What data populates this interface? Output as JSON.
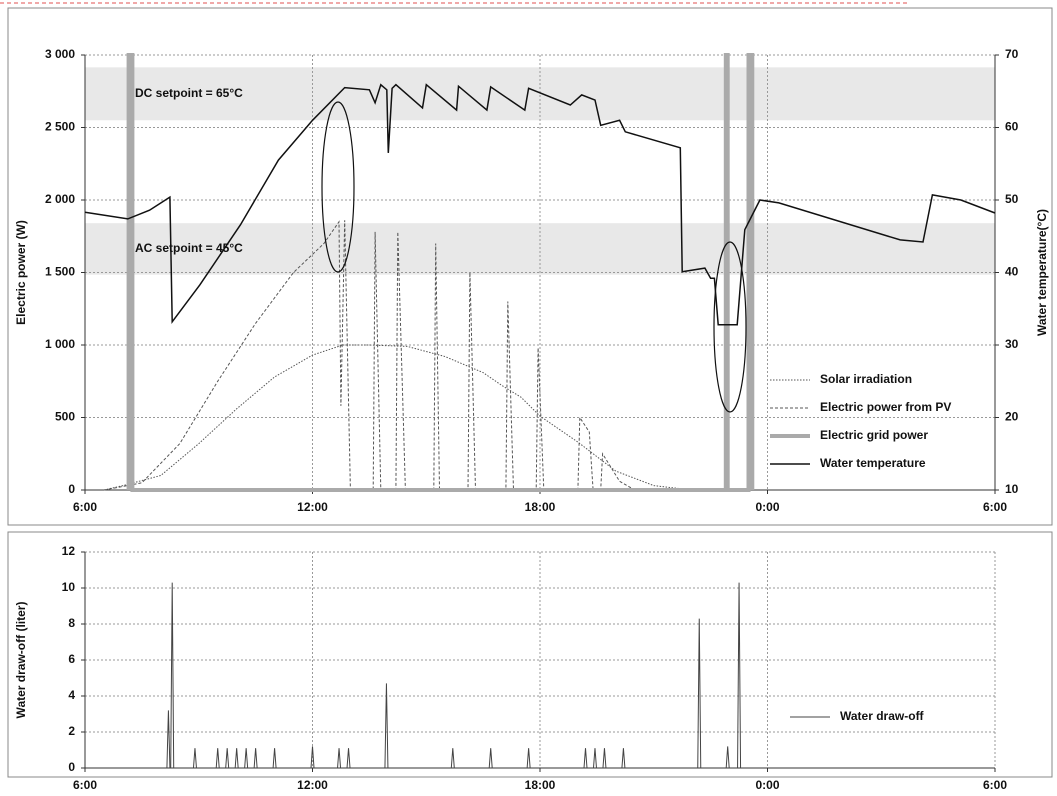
{
  "chart_data": [
    {
      "type": "line",
      "ylabel": "Electric power (W)",
      "y2label": "Water temperature(°C)",
      "xlim": [
        6,
        30
      ],
      "xticks": [
        {
          "value": 6,
          "label": "6:00"
        },
        {
          "value": 12,
          "label": "12:00"
        },
        {
          "value": 18,
          "label": "18:00"
        },
        {
          "value": 24,
          "label": "0:00"
        },
        {
          "value": 30,
          "label": "6:00"
        }
      ],
      "ylim": [
        0,
        3000
      ],
      "yticks": [
        0,
        500,
        {
          "value": 1000,
          "label": "1 000"
        },
        {
          "value": 1500,
          "label": "1 500"
        },
        {
          "value": 2000,
          "label": "2 000"
        },
        {
          "value": 2500,
          "label": "2 500"
        },
        {
          "value": 3000,
          "label": "3 000"
        }
      ],
      "y2lim": [
        10,
        70
      ],
      "y2ticks": [
        10,
        20,
        30,
        40,
        50,
        60,
        70
      ],
      "grid": true,
      "legend": "lower right",
      "bands": [
        {
          "label": "DC setpoint = 65°C",
          "range": [
            61,
            68.3
          ],
          "axis": "y2"
        },
        {
          "label": "AC setpoint =  45°C",
          "range": [
            39.7,
            46.8
          ],
          "axis": "y2"
        }
      ],
      "series": [
        {
          "name": "Solar irradiation",
          "color": "#555555",
          "dash": "dotted",
          "width": 1,
          "x": [
            6.5,
            7,
            8,
            9,
            10,
            11,
            12,
            12.8,
            13.5,
            14.5,
            15.5,
            16.5,
            17,
            17.5,
            18,
            19,
            20,
            21,
            22
          ],
          "values": [
            0,
            30,
            100,
            320,
            560,
            780,
            930,
            1000,
            1000,
            990,
            920,
            810,
            720,
            640,
            510,
            330,
            130,
            30,
            0
          ]
        },
        {
          "name": "Electric power from PV",
          "color": "#555555",
          "dash": "dashed",
          "width": 1,
          "x": [
            6.5,
            7.5,
            8.5,
            9.5,
            10.5,
            11.5,
            12.3,
            12.7,
            12.75,
            12.85,
            13,
            13.6,
            13.65,
            13.8,
            14.2,
            14.25,
            14.45,
            15.2,
            15.25,
            15.35,
            16.1,
            16.15,
            16.3,
            17.1,
            17.15,
            17.3,
            17.9,
            17.95,
            18.1,
            19,
            19.05,
            19.3,
            19.4,
            19.6,
            19.65,
            20.1,
            20.5
          ],
          "values": [
            0,
            50,
            320,
            750,
            1150,
            1500,
            1700,
            1850,
            580,
            1860,
            0,
            0,
            1780,
            0,
            0,
            1780,
            0,
            0,
            1700,
            0,
            0,
            1500,
            0,
            0,
            1300,
            0,
            0,
            980,
            0,
            0,
            500,
            400,
            0,
            0,
            250,
            60,
            0
          ]
        },
        {
          "name": "Electric grid power",
          "color": "#aaaaaa",
          "dash": "solid",
          "width": 4,
          "x": [
            7.15,
            7.15,
            7.25,
            7.25,
            22.9,
            22.9,
            22.95,
            22.95,
            23.5,
            23.5,
            23.6,
            23.6
          ],
          "values": [
            0,
            3000,
            3000,
            0,
            0,
            3000,
            3000,
            0,
            0,
            3000,
            3000,
            0
          ]
        },
        {
          "name": "Water temperature",
          "color": "#111111",
          "dash": "solid",
          "width": 1.5,
          "axis": "y2",
          "x": [
            6,
            7.13,
            7.7,
            8.24,
            8.3,
            9.03,
            10.1,
            11.1,
            12,
            12.85,
            13.5,
            13.65,
            13.8,
            13.96,
            14,
            14.1,
            14.2,
            14.9,
            15,
            15.8,
            15.85,
            16.6,
            16.7,
            17.6,
            17.7,
            18.8,
            19.1,
            19.45,
            19.6,
            20.1,
            20.25,
            21.7,
            21.75,
            22.35,
            22.5,
            22.6,
            22.7,
            23.2,
            23.4,
            23.8,
            24.3,
            27.5,
            28.1,
            28.35,
            29.1,
            30
          ],
          "values": [
            48.3,
            47.4,
            48.6,
            50.4,
            33.2,
            38.3,
            46.6,
            55.5,
            61,
            65.5,
            65.2,
            63.4,
            65.9,
            65.2,
            56.5,
            65.4,
            65.9,
            62.7,
            65.9,
            62.4,
            65.7,
            62.4,
            65.6,
            62.4,
            65.4,
            63.1,
            64.5,
            63.8,
            60.3,
            61,
            59.4,
            57.2,
            40.1,
            40.6,
            39.2,
            39.2,
            32.8,
            32.8,
            45.9,
            50,
            49.6,
            44.5,
            44.2,
            50.7,
            50,
            48.2
          ]
        }
      ]
    },
    {
      "type": "spike",
      "ylabel": "Water draw-off (liter)",
      "xlim": [
        6,
        30
      ],
      "xticks": [
        {
          "value": 6,
          "label": "6:00"
        },
        {
          "value": 12,
          "label": "12:00"
        },
        {
          "value": 18,
          "label": "18:00"
        },
        {
          "value": 24,
          "label": "0:00"
        },
        {
          "value": 30,
          "label": "6:00"
        }
      ],
      "ylim": [
        0,
        12
      ],
      "yticks": [
        0,
        2,
        4,
        6,
        8,
        10,
        12
      ],
      "grid": true,
      "legend": "lower right",
      "series": [
        {
          "name": "Water draw-off",
          "color": "#444444",
          "dash": "solid",
          "width": 1,
          "x": [
            8.2,
            8.3,
            8.9,
            9.5,
            9.75,
            10,
            10.25,
            10.5,
            11,
            12,
            12.7,
            12.95,
            13.95,
            15.7,
            16.7,
            17.7,
            19.2,
            19.45,
            19.7,
            20.2,
            22.2,
            22.95,
            23.25
          ],
          "values": [
            3.2,
            10.3,
            1.1,
            1.1,
            1.1,
            1.1,
            1.1,
            1.1,
            1.1,
            1.2,
            1.1,
            1.1,
            4.7,
            1.1,
            1.1,
            1.1,
            1.1,
            1.1,
            1.1,
            1.1,
            8.3,
            1.2,
            10.3
          ]
        }
      ]
    }
  ]
}
